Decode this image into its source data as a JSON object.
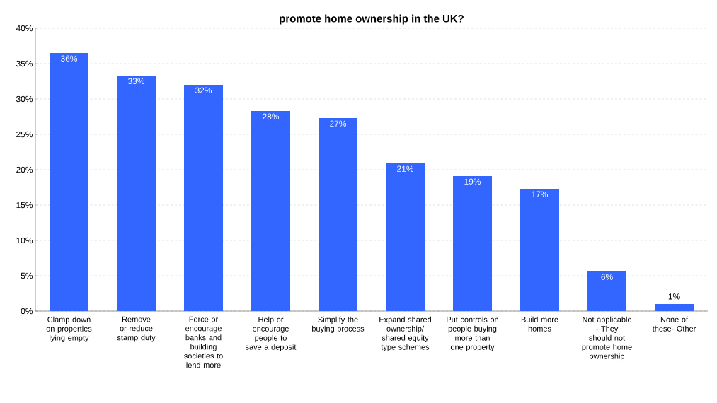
{
  "chart_data": {
    "type": "bar",
    "title": "promote home ownership in the UK?",
    "categories": [
      "Clamp down on properties lying empty",
      "Remove or reduce stamp duty",
      "Force or encourage banks and building societies to lend more",
      "Help or encourage people to save a deposit",
      "Simplify the buying process",
      "Expand shared ownership/ shared equity type schemes",
      "Put controls on people buying more than one property",
      "Build more homes",
      "Not applicable - They should not promote home ownership",
      "None of these- Other"
    ],
    "values": [
      36.5,
      33.3,
      32.0,
      28.3,
      27.3,
      20.9,
      19.1,
      17.3,
      5.6,
      1.0
    ],
    "value_labels": [
      "36%",
      "33%",
      "32%",
      "28%",
      "27%",
      "21%",
      "19%",
      "17%",
      "6%",
      "1%"
    ],
    "color": "#3366ff",
    "ylim": [
      0,
      40
    ],
    "yticks": [
      {
        "value": 0,
        "label": "0%"
      },
      {
        "value": 5,
        "label": "5%"
      },
      {
        "value": 10,
        "label": "10%"
      },
      {
        "value": 15,
        "label": "15%"
      },
      {
        "value": 20,
        "label": "20%"
      },
      {
        "value": 25,
        "label": "25%"
      },
      {
        "value": 30,
        "label": "30%"
      },
      {
        "value": 35,
        "label": "35%"
      },
      {
        "value": 40,
        "label": "40%"
      }
    ],
    "grid": "y"
  }
}
